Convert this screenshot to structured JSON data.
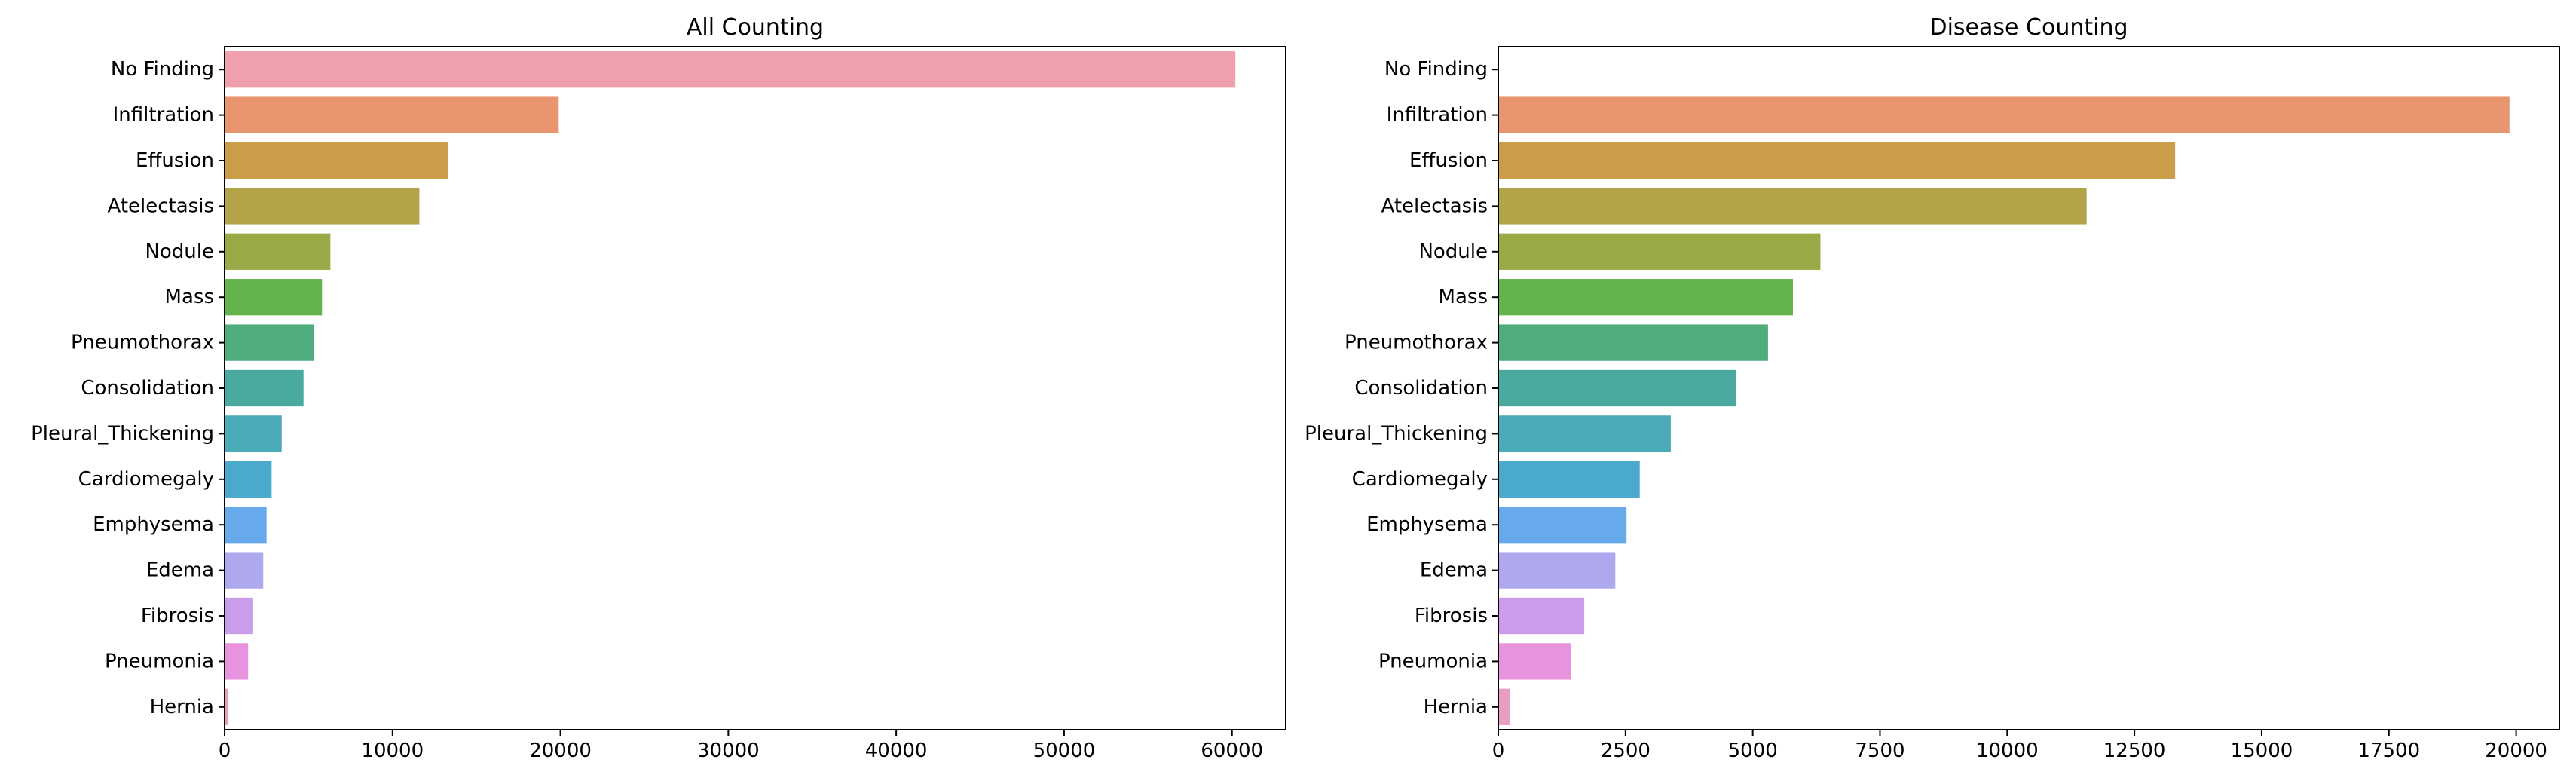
{
  "chart_data": [
    {
      "type": "bar",
      "orientation": "horizontal",
      "title": "All Counting",
      "xlabel": "",
      "ylabel": "",
      "categories": [
        "No Finding",
        "Infiltration",
        "Effusion",
        "Atelectasis",
        "Nodule",
        "Mass",
        "Pneumothorax",
        "Consolidation",
        "Pleural_Thickening",
        "Cardiomegaly",
        "Emphysema",
        "Edema",
        "Fibrosis",
        "Pneumonia",
        "Hernia"
      ],
      "values": [
        60200,
        19900,
        13300,
        11600,
        6300,
        5800,
        5300,
        4700,
        3400,
        2800,
        2500,
        2300,
        1700,
        1400,
        230
      ],
      "xlim": [
        0,
        63200
      ],
      "xticks": [
        0,
        10000,
        20000,
        30000,
        40000,
        50000,
        60000
      ],
      "grid": false,
      "colors": [
        "#f0a0ac",
        "#e9956f",
        "#cb9c4a",
        "#b3a349",
        "#9ca947",
        "#65b44b",
        "#4fac7d",
        "#4aaaa0",
        "#4cabb9",
        "#4ba9cc",
        "#67aaec",
        "#aea8ee",
        "#cc9cec",
        "#e992de",
        "#e89ec0"
      ]
    },
    {
      "type": "bar",
      "orientation": "horizontal",
      "title": "Disease Counting",
      "xlabel": "",
      "ylabel": "",
      "categories": [
        "No Finding",
        "Infiltration",
        "Effusion",
        "Atelectasis",
        "Nodule",
        "Mass",
        "Pneumothorax",
        "Consolidation",
        "Pleural_Thickening",
        "Cardiomegaly",
        "Emphysema",
        "Edema",
        "Fibrosis",
        "Pneumonia",
        "Hernia"
      ],
      "values": [
        0,
        19870,
        13300,
        11560,
        6330,
        5790,
        5300,
        4670,
        3390,
        2780,
        2520,
        2300,
        1690,
        1430,
        230
      ],
      "xlim": [
        0,
        20850
      ],
      "xticks": [
        0,
        2500,
        5000,
        7500,
        10000,
        12500,
        15000,
        17500,
        20000
      ],
      "grid": false,
      "colors": [
        "#f0a0ac",
        "#e9956f",
        "#cb9c4a",
        "#b3a349",
        "#9ca947",
        "#65b44b",
        "#4fac7d",
        "#4aaaa0",
        "#4cabb9",
        "#4ba9cc",
        "#67aaec",
        "#aea8ee",
        "#cc9cec",
        "#e992de",
        "#e89ec0"
      ]
    }
  ]
}
